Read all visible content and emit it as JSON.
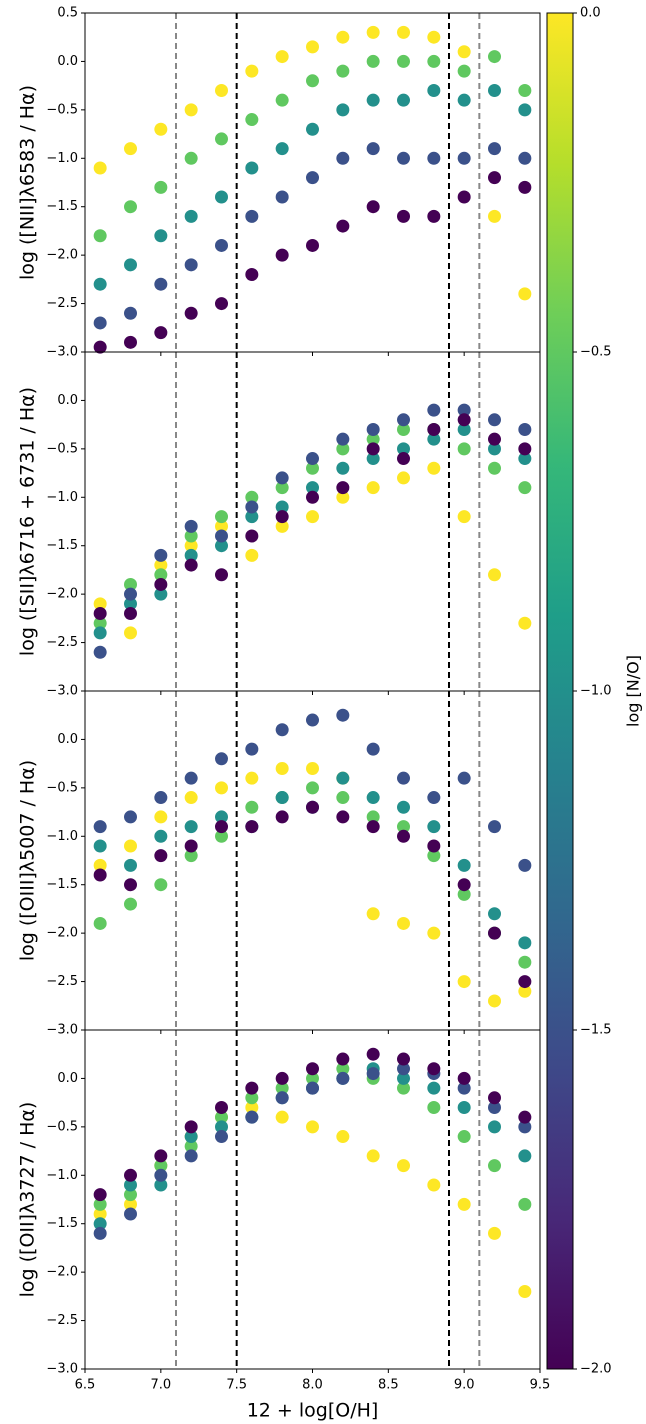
{
  "chart_data": [
    {
      "type": "scatter",
      "ylabel": "log ([NII]λ6583 / Hα)",
      "xlim": [
        6.5,
        9.5
      ],
      "ylim": [
        -3.0,
        0.5
      ],
      "yticks": [
        {
          "value": 0.5,
          "label": "0.5"
        },
        {
          "value": 0,
          "label": "0.0"
        },
        {
          "value": -0.5,
          "label": "−0.5"
        },
        {
          "value": -1,
          "label": "−1.0"
        },
        {
          "value": -1.5,
          "label": "−1.5"
        },
        {
          "value": -2,
          "label": "−2.0"
        },
        {
          "value": -2.5,
          "label": "−2.5"
        },
        {
          "value": -3,
          "label": "−3.0"
        }
      ],
      "xticks": [
        6.5,
        7,
        7.5,
        8,
        8.5,
        9,
        9.5
      ],
      "vlines": [
        {
          "x": 7.1,
          "color": "#888888"
        },
        {
          "x": 7.5,
          "color": "#000000"
        },
        {
          "x": 8.9,
          "color": "#000000"
        },
        {
          "x": 9.1,
          "color": "#888888"
        }
      ],
      "x": [
        6.6,
        6.6,
        6.6,
        6.6,
        6.6,
        6.8,
        6.8,
        6.8,
        6.8,
        6.8,
        7.0,
        7.0,
        7.0,
        7.0,
        7.0,
        7.2,
        7.2,
        7.2,
        7.2,
        7.2,
        7.4,
        7.4,
        7.4,
        7.4,
        7.4,
        7.6,
        7.6,
        7.6,
        7.6,
        7.6,
        7.8,
        7.8,
        7.8,
        7.8,
        7.8,
        8.0,
        8.0,
        8.0,
        8.0,
        8.0,
        8.2,
        8.2,
        8.2,
        8.2,
        8.2,
        8.4,
        8.4,
        8.4,
        8.4,
        8.4,
        8.6,
        8.6,
        8.6,
        8.6,
        8.6,
        8.8,
        8.8,
        8.8,
        8.8,
        8.8,
        9.0,
        9.0,
        9.0,
        9.0,
        9.0,
        9.2,
        9.2,
        9.2,
        9.2,
        9.2,
        9.4,
        9.4,
        9.4,
        9.4,
        9.4
      ],
      "y": [
        -1.1,
        -1.8,
        -2.3,
        -2.7,
        -2.95,
        -0.9,
        -1.5,
        -2.1,
        -2.6,
        -2.9,
        -0.7,
        -1.3,
        -1.8,
        -2.3,
        -2.8,
        -0.5,
        -1.0,
        -1.6,
        -2.1,
        -2.6,
        -0.3,
        -0.8,
        -1.4,
        -1.9,
        -2.5,
        -0.1,
        -0.6,
        -1.1,
        -1.6,
        -2.2,
        0.05,
        -0.4,
        -0.9,
        -1.4,
        -2.0,
        0.15,
        -0.2,
        -0.7,
        -1.2,
        -1.9,
        0.25,
        -0.1,
        -0.5,
        -1.0,
        -1.7,
        0.3,
        0.0,
        -0.4,
        -0.9,
        -1.5,
        0.3,
        0.0,
        -0.4,
        -1.0,
        -1.6,
        0.25,
        0.0,
        -0.3,
        -1.0,
        -1.6,
        0.1,
        -0.1,
        -0.4,
        -1.0,
        -1.4,
        -1.6,
        0.05,
        -0.3,
        -0.9,
        -1.2,
        -2.4,
        -0.3,
        -0.5,
        -1.0,
        -1.3
      ],
      "c": [
        0,
        -0.5,
        -1,
        -1.5,
        -2,
        0,
        -0.5,
        -1,
        -1.5,
        -2,
        0,
        -0.5,
        -1,
        -1.5,
        -2,
        0,
        -0.5,
        -1,
        -1.5,
        -2,
        0,
        -0.5,
        -1,
        -1.5,
        -2,
        0,
        -0.5,
        -1,
        -1.5,
        -2,
        0,
        -0.5,
        -1,
        -1.5,
        -2,
        0,
        -0.5,
        -1,
        -1.5,
        -2,
        0,
        -0.5,
        -1,
        -1.5,
        -2,
        0,
        -0.5,
        -1,
        -1.5,
        -2,
        0,
        -0.5,
        -1,
        -1.5,
        -2,
        0,
        -0.5,
        -1,
        -1.5,
        -2,
        0,
        -0.5,
        -1,
        -1.5,
        -2,
        0,
        -0.5,
        -1,
        -1.5,
        -2,
        0,
        -0.5,
        -1,
        -1.5,
        -2
      ]
    },
    {
      "type": "scatter",
      "ylabel": "log ([SII]λ6716 + 6731 / Hα)",
      "xlim": [
        6.5,
        9.5
      ],
      "ylim": [
        -3.0,
        0.5
      ],
      "yticks": [
        {
          "value": 0,
          "label": "0.0"
        },
        {
          "value": -0.5,
          "label": "−0.5"
        },
        {
          "value": -1,
          "label": "−1.0"
        },
        {
          "value": -1.5,
          "label": "−1.5"
        },
        {
          "value": -2,
          "label": "−2.0"
        },
        {
          "value": -2.5,
          "label": "−2.5"
        },
        {
          "value": -3,
          "label": "−3.0"
        }
      ],
      "xticks": [
        6.5,
        7,
        7.5,
        8,
        8.5,
        9,
        9.5
      ],
      "vlines": [
        {
          "x": 7.1,
          "color": "#888888"
        },
        {
          "x": 7.5,
          "color": "#000000"
        },
        {
          "x": 8.9,
          "color": "#000000"
        },
        {
          "x": 9.1,
          "color": "#888888"
        }
      ],
      "x": [
        6.6,
        6.6,
        6.6,
        6.6,
        6.6,
        6.8,
        6.8,
        6.8,
        6.8,
        6.8,
        7.0,
        7.0,
        7.0,
        7.0,
        7.0,
        7.2,
        7.2,
        7.2,
        7.2,
        7.2,
        7.4,
        7.4,
        7.4,
        7.4,
        7.4,
        7.6,
        7.6,
        7.6,
        7.6,
        7.6,
        7.8,
        7.8,
        7.8,
        7.8,
        7.8,
        8.0,
        8.0,
        8.0,
        8.0,
        8.0,
        8.2,
        8.2,
        8.2,
        8.2,
        8.2,
        8.4,
        8.4,
        8.4,
        8.4,
        8.4,
        8.6,
        8.6,
        8.6,
        8.6,
        8.6,
        8.8,
        8.8,
        8.8,
        8.8,
        8.8,
        9.0,
        9.0,
        9.0,
        9.0,
        9.0,
        9.2,
        9.2,
        9.2,
        9.2,
        9.2,
        9.4,
        9.4,
        9.4,
        9.4,
        9.4
      ],
      "y": [
        -2.1,
        -2.3,
        -2.4,
        -2.6,
        -2.2,
        -2.4,
        -1.9,
        -2.1,
        -2.0,
        -2.2,
        -1.7,
        -1.8,
        -2.0,
        -1.6,
        -1.9,
        -1.5,
        -1.4,
        -1.6,
        -1.3,
        -1.7,
        -1.3,
        -1.2,
        -1.5,
        -1.4,
        -1.8,
        -1.6,
        -1.0,
        -1.2,
        -1.1,
        -1.4,
        -1.3,
        -0.9,
        -1.1,
        -0.8,
        -1.2,
        -1.2,
        -0.7,
        -0.9,
        -0.6,
        -1.0,
        -1.0,
        -0.5,
        -0.7,
        -0.4,
        -0.9,
        -0.9,
        -0.4,
        -0.6,
        -0.3,
        -0.5,
        -0.8,
        -0.3,
        -0.5,
        -0.2,
        -0.6,
        -0.7,
        -0.3,
        -0.4,
        -0.1,
        -0.3,
        -1.2,
        -0.5,
        -0.3,
        -0.1,
        -0.2,
        -1.8,
        -0.7,
        -0.5,
        -0.2,
        -0.4,
        -2.3,
        -0.9,
        -0.6,
        -0.3,
        -0.5
      ],
      "c": [
        0,
        -0.5,
        -1,
        -1.5,
        -2,
        0,
        -0.5,
        -1,
        -1.5,
        -2,
        0,
        -0.5,
        -1,
        -1.5,
        -2,
        0,
        -0.5,
        -1,
        -1.5,
        -2,
        0,
        -0.5,
        -1,
        -1.5,
        -2,
        0,
        -0.5,
        -1,
        -1.5,
        -2,
        0,
        -0.5,
        -1,
        -1.5,
        -2,
        0,
        -0.5,
        -1,
        -1.5,
        -2,
        0,
        -0.5,
        -1,
        -1.5,
        -2,
        0,
        -0.5,
        -1,
        -1.5,
        -2,
        0,
        -0.5,
        -1,
        -1.5,
        -2,
        0,
        -0.5,
        -1,
        -1.5,
        -2,
        0,
        -0.5,
        -1,
        -1.5,
        -2,
        0,
        -0.5,
        -1,
        -1.5,
        -2,
        0,
        -0.5,
        -1,
        -1.5,
        -2
      ]
    },
    {
      "type": "scatter",
      "ylabel": "log ([OIII]λ5007 / Hα)",
      "xlim": [
        6.5,
        9.5
      ],
      "ylim": [
        -3.0,
        0.5
      ],
      "yticks": [
        {
          "value": 0,
          "label": "0.0"
        },
        {
          "value": -0.5,
          "label": "−0.5"
        },
        {
          "value": -1,
          "label": "−1.0"
        },
        {
          "value": -1.5,
          "label": "−1.5"
        },
        {
          "value": -2,
          "label": "−2.0"
        },
        {
          "value": -2.5,
          "label": "−2.5"
        },
        {
          "value": -3,
          "label": "−3.0"
        }
      ],
      "xticks": [
        6.5,
        7,
        7.5,
        8,
        8.5,
        9,
        9.5
      ],
      "vlines": [
        {
          "x": 7.1,
          "color": "#888888"
        },
        {
          "x": 7.5,
          "color": "#000000"
        },
        {
          "x": 8.9,
          "color": "#000000"
        },
        {
          "x": 9.1,
          "color": "#888888"
        }
      ],
      "x": [
        6.6,
        6.6,
        6.6,
        6.6,
        6.6,
        6.8,
        6.8,
        6.8,
        6.8,
        6.8,
        7.0,
        7.0,
        7.0,
        7.0,
        7.0,
        7.2,
        7.2,
        7.2,
        7.2,
        7.2,
        7.4,
        7.4,
        7.4,
        7.4,
        7.4,
        7.6,
        7.6,
        7.6,
        7.6,
        7.6,
        7.8,
        7.8,
        7.8,
        7.8,
        7.8,
        8.0,
        8.0,
        8.0,
        8.0,
        8.0,
        8.2,
        8.2,
        8.2,
        8.2,
        8.2,
        8.4,
        8.4,
        8.4,
        8.4,
        8.4,
        8.6,
        8.6,
        8.6,
        8.6,
        8.6,
        8.8,
        8.8,
        8.8,
        8.8,
        8.8,
        9.0,
        9.0,
        9.0,
        9.0,
        9.0,
        9.2,
        9.2,
        9.2,
        9.2,
        9.2,
        9.4,
        9.4,
        9.4,
        9.4,
        9.4
      ],
      "y": [
        -1.3,
        -1.9,
        -1.1,
        -0.9,
        -1.4,
        -1.1,
        -1.7,
        -1.3,
        -0.8,
        -1.5,
        -0.8,
        -1.5,
        -1.0,
        -0.6,
        -1.2,
        -0.6,
        -1.2,
        -0.9,
        -0.4,
        -1.1,
        -0.5,
        -1.0,
        -0.8,
        -0.2,
        -0.9,
        -0.4,
        -0.7,
        -0.9,
        -0.1,
        -0.9,
        -0.3,
        -0.6,
        -0.6,
        0.1,
        -0.8,
        -0.3,
        -0.5,
        -0.7,
        0.2,
        -0.7,
        -0.4,
        -0.6,
        -0.4,
        0.25,
        -0.8,
        -1.8,
        -0.8,
        -0.6,
        -0.1,
        -0.9,
        -1.9,
        -0.9,
        -0.7,
        -0.4,
        -1.0,
        -2.0,
        -1.2,
        -0.9,
        -0.6,
        -1.1,
        -2.5,
        -1.6,
        -1.3,
        -0.4,
        -1.5,
        -2.7,
        -2.0,
        -1.8,
        -0.9,
        -2.0,
        -2.6,
        -2.3,
        -2.1,
        -1.3,
        -2.5
      ],
      "c": [
        0,
        -0.5,
        -1,
        -1.5,
        -2,
        0,
        -0.5,
        -1,
        -1.5,
        -2,
        0,
        -0.5,
        -1,
        -1.5,
        -2,
        0,
        -0.5,
        -1,
        -1.5,
        -2,
        0,
        -0.5,
        -1,
        -1.5,
        -2,
        0,
        -0.5,
        -1,
        -1.5,
        -2,
        0,
        -0.5,
        -1,
        -1.5,
        -2,
        0,
        -0.5,
        -1,
        -1.5,
        -2,
        0,
        -0.5,
        -1,
        -1.5,
        -2,
        0,
        -0.5,
        -1,
        -1.5,
        -2,
        0,
        -0.5,
        -1,
        -1.5,
        -2,
        0,
        -0.5,
        -1,
        -1.5,
        -2,
        0,
        -0.5,
        -1,
        -1.5,
        -2,
        0,
        -0.5,
        -1,
        -1.5,
        -2,
        0,
        -0.5,
        -1,
        -1.5,
        -2
      ]
    },
    {
      "type": "scatter",
      "ylabel": "log ([OII]λ3727 / Hα)",
      "xlabel": "12 + log[O/H]",
      "xlim": [
        6.5,
        9.5
      ],
      "ylim": [
        -3.0,
        0.5
      ],
      "yticks": [
        {
          "value": 0,
          "label": "0.0"
        },
        {
          "value": -0.5,
          "label": "−0.5"
        },
        {
          "value": -1,
          "label": "−1.0"
        },
        {
          "value": -1.5,
          "label": "−1.5"
        },
        {
          "value": -2,
          "label": "−2.0"
        },
        {
          "value": -2.5,
          "label": "−2.5"
        },
        {
          "value": -3,
          "label": "−3.0"
        }
      ],
      "xticks": [
        6.5,
        {
          "value": 7,
          "label": "7.0"
        },
        7.5,
        {
          "value": 8,
          "label": "8.0"
        },
        8.5,
        {
          "value": 9,
          "label": "9.0"
        },
        9.5
      ],
      "vlines": [
        {
          "x": 7.1,
          "color": "#888888"
        },
        {
          "x": 7.5,
          "color": "#000000"
        },
        {
          "x": 8.9,
          "color": "#000000"
        },
        {
          "x": 9.1,
          "color": "#888888"
        }
      ],
      "x": [
        6.6,
        6.6,
        6.6,
        6.6,
        6.6,
        6.8,
        6.8,
        6.8,
        6.8,
        6.8,
        7.0,
        7.0,
        7.0,
        7.0,
        7.0,
        7.2,
        7.2,
        7.2,
        7.2,
        7.2,
        7.4,
        7.4,
        7.4,
        7.4,
        7.4,
        7.6,
        7.6,
        7.6,
        7.6,
        7.6,
        7.8,
        7.8,
        7.8,
        7.8,
        7.8,
        8.0,
        8.0,
        8.0,
        8.0,
        8.0,
        8.2,
        8.2,
        8.2,
        8.2,
        8.2,
        8.4,
        8.4,
        8.4,
        8.4,
        8.4,
        8.6,
        8.6,
        8.6,
        8.6,
        8.6,
        8.8,
        8.8,
        8.8,
        8.8,
        8.8,
        9.0,
        9.0,
        9.0,
        9.0,
        9.0,
        9.2,
        9.2,
        9.2,
        9.2,
        9.2,
        9.4,
        9.4,
        9.4,
        9.4,
        9.4
      ],
      "y": [
        -1.4,
        -1.3,
        -1.5,
        -1.6,
        -1.2,
        -1.3,
        -1.2,
        -1.1,
        -1.4,
        -1.0,
        -0.9,
        -0.9,
        -1.1,
        -1.0,
        -0.8,
        -0.6,
        -0.7,
        -0.6,
        -0.8,
        -0.5,
        -0.4,
        -0.4,
        -0.5,
        -0.6,
        -0.3,
        -0.3,
        -0.2,
        -0.4,
        -0.4,
        -0.1,
        -0.4,
        -0.1,
        -0.2,
        -0.2,
        0.0,
        -0.5,
        0.0,
        -0.1,
        -0.1,
        0.1,
        -0.6,
        0.1,
        0.0,
        0.0,
        0.2,
        -0.8,
        0.0,
        0.1,
        0.05,
        0.25,
        -0.9,
        -0.1,
        0.0,
        0.1,
        0.2,
        -1.1,
        -0.3,
        -0.1,
        0.05,
        0.1,
        -1.3,
        -0.6,
        -0.3,
        -0.1,
        0.0,
        -1.6,
        -0.9,
        -0.5,
        -0.3,
        -0.2,
        -2.2,
        -1.3,
        -0.8,
        -0.5,
        -0.4
      ],
      "c": [
        0,
        -0.5,
        -1,
        -1.5,
        -2,
        0,
        -0.5,
        -1,
        -1.5,
        -2,
        0,
        -0.5,
        -1,
        -1.5,
        -2,
        0,
        -0.5,
        -1,
        -1.5,
        -2,
        0,
        -0.5,
        -1,
        -1.5,
        -2,
        0,
        -0.5,
        -1,
        -1.5,
        -2,
        0,
        -0.5,
        -1,
        -1.5,
        -2,
        0,
        -0.5,
        -1,
        -1.5,
        -2,
        0,
        -0.5,
        -1,
        -1.5,
        -2,
        0,
        -0.5,
        -1,
        -1.5,
        -2,
        0,
        -0.5,
        -1,
        -1.5,
        -2,
        0,
        -0.5,
        -1,
        -1.5,
        -2,
        0,
        -0.5,
        -1,
        -1.5,
        -2,
        0,
        -0.5,
        -1,
        -1.5,
        -2,
        0,
        -0.5,
        -1,
        -1.5,
        -2
      ]
    },
    {
      "type": "colorbar",
      "label": "log [N/O]",
      "cmap": "viridis",
      "clim": [
        -2.0,
        0.0
      ],
      "cticks": [
        {
          "value": 0,
          "label": "0.0"
        },
        {
          "value": -0.5,
          "label": "−0.5"
        },
        {
          "value": -1,
          "label": "−1.0"
        },
        {
          "value": -1.5,
          "label": "−1.5"
        },
        {
          "value": -2,
          "label": "−2.0"
        }
      ]
    }
  ]
}
